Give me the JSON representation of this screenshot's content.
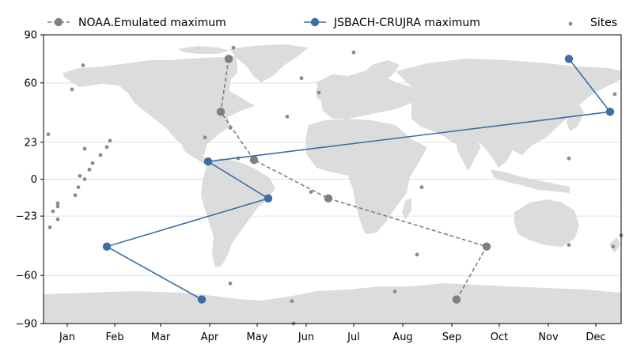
{
  "chart_data": {
    "type": "line",
    "title": "",
    "xlabel": "",
    "ylabel": "",
    "xlim": [
      0,
      365
    ],
    "ylim": [
      -90,
      90
    ],
    "grid": "horizontal",
    "legend_placement": "top",
    "background": "world-map",
    "land_color": "#dcdcdc",
    "x_ticks": [
      {
        "value": 15,
        "label": "Jan"
      },
      {
        "value": 45,
        "label": "Feb"
      },
      {
        "value": 74,
        "label": "Mar"
      },
      {
        "value": 105,
        "label": "Apr"
      },
      {
        "value": 135,
        "label": "May"
      },
      {
        "value": 166,
        "label": "Jun"
      },
      {
        "value": 196,
        "label": "Jul"
      },
      {
        "value": 227,
        "label": "Aug"
      },
      {
        "value": 258,
        "label": "Sep"
      },
      {
        "value": 288,
        "label": "Oct"
      },
      {
        "value": 319,
        "label": "Nov"
      },
      {
        "value": 349,
        "label": "Dec"
      }
    ],
    "y_ticks": [
      {
        "value": 90,
        "label": "90"
      },
      {
        "value": 60,
        "label": "60"
      },
      {
        "value": 23,
        "label": "23"
      },
      {
        "value": 0,
        "label": "0"
      },
      {
        "value": -23,
        "label": "−23"
      },
      {
        "value": -60,
        "label": "−60"
      },
      {
        "value": -90,
        "label": "−90"
      }
    ],
    "series": [
      {
        "name": "NOAA.Emulated maximum",
        "color": "#7f7f7f",
        "line_style": "dashed",
        "points": [
          {
            "x": 117,
            "y": 75
          },
          {
            "x": 112,
            "y": 42
          },
          {
            "x": 133,
            "y": 12
          },
          {
            "x": 180,
            "y": -12
          },
          {
            "x": 280,
            "y": -42
          },
          {
            "x": 261,
            "y": -75
          }
        ]
      },
      {
        "name": "JSBACH-CRUJRA maximum",
        "color": "#3a6ea5",
        "line_style": "solid",
        "points": [
          {
            "x": 332,
            "y": 75
          },
          {
            "x": 358,
            "y": 42
          },
          {
            "x": 104,
            "y": 11
          },
          {
            "x": 142,
            "y": -12
          },
          {
            "x": 40,
            "y": -42
          },
          {
            "x": 100,
            "y": -75
          }
        ]
      },
      {
        "name": "Sites",
        "color": "#8c8c8c",
        "marker": "dot",
        "points": [
          {
            "x": 120,
            "y": 82
          },
          {
            "x": 25,
            "y": 71
          },
          {
            "x": 196,
            "y": 79
          },
          {
            "x": 18,
            "y": 56
          },
          {
            "x": 163,
            "y": 63
          },
          {
            "x": 174,
            "y": 54
          },
          {
            "x": 361,
            "y": 53
          },
          {
            "x": 154,
            "y": 39
          },
          {
            "x": 118,
            "y": 32
          },
          {
            "x": 3,
            "y": 28
          },
          {
            "x": 102,
            "y": 26
          },
          {
            "x": 42,
            "y": 24
          },
          {
            "x": 26,
            "y": 19
          },
          {
            "x": 40,
            "y": 20
          },
          {
            "x": 36,
            "y": 15
          },
          {
            "x": 123,
            "y": 13
          },
          {
            "x": 332,
            "y": 13
          },
          {
            "x": 31,
            "y": 10
          },
          {
            "x": 29,
            "y": 6
          },
          {
            "x": 23,
            "y": 2
          },
          {
            "x": 26,
            "y": 0
          },
          {
            "x": 22,
            "y": -5
          },
          {
            "x": 239,
            "y": -5
          },
          {
            "x": 20,
            "y": -10
          },
          {
            "x": 169,
            "y": -8
          },
          {
            "x": 9,
            "y": -15
          },
          {
            "x": 9,
            "y": -17
          },
          {
            "x": 6,
            "y": -20
          },
          {
            "x": 9,
            "y": -25
          },
          {
            "x": 4,
            "y": -30
          },
          {
            "x": 365,
            "y": -35
          },
          {
            "x": 332,
            "y": -41
          },
          {
            "x": 360,
            "y": -42
          },
          {
            "x": 236,
            "y": -47
          },
          {
            "x": 118,
            "y": -65
          },
          {
            "x": 222,
            "y": -70
          },
          {
            "x": 157,
            "y": -76
          },
          {
            "x": 158,
            "y": -90
          }
        ]
      }
    ]
  }
}
